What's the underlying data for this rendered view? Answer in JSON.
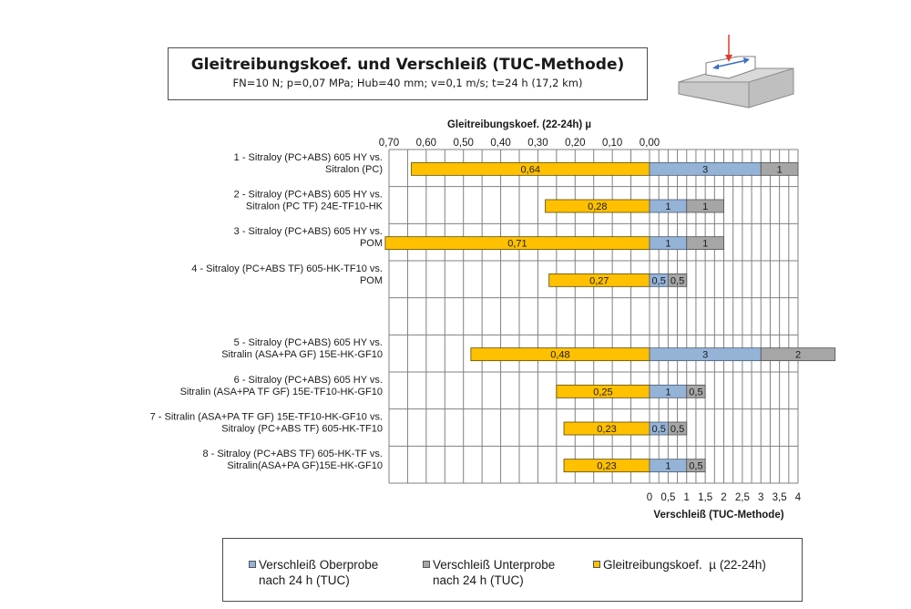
{
  "title": "Gleitreibungskoef. und Verschleiß (TUC-Methode)",
  "subtitle": "FN=10 N; p=0,07 MPa; Hub=40 mm; v=0,1 m/s; t=24 h (17,2 km)",
  "colors": {
    "friction": "#ffc000",
    "wear_upper": "#95b3d7",
    "wear_lower": "#a6a6a6",
    "grid": "#808080"
  },
  "chart_data": {
    "type": "bar",
    "orientation": "horizontal",
    "stacked_right": true,
    "x_top": {
      "label": "Gleitreibungskoef. (22-24h) µ",
      "range": [
        0.7,
        0.0
      ],
      "ticks": [
        "0,70",
        "0,60",
        "0,50",
        "0,40",
        "0,30",
        "0,20",
        "0,10",
        "0,00"
      ]
    },
    "x_bottom": {
      "label": "Verschleiß (TUC-Methode)",
      "range": [
        0,
        4
      ],
      "ticks": [
        "0",
        "0,5",
        "1",
        "1,5",
        "2",
        "2,5",
        "3",
        "3,5",
        "4"
      ]
    },
    "categories": [
      "1 - Sitraloy (PC+ABS) 605 HY  vs.\nSitralon (PC)",
      "2 - Sitraloy (PC+ABS) 605 HY  vs.\nSitralon (PC TF) 24E-TF10-HK",
      "3 - Sitraloy (PC+ABS) 605 HY    vs.\nPOM",
      "4 - Sitraloy (PC+ABS TF) 605-HK-TF10  vs.\nPOM",
      "",
      "5 - Sitraloy (PC+ABS) 605 HY vs.\nSitralin (ASA+PA GF) 15E-HK-GF10",
      "6 - Sitraloy (PC+ABS) 605 HY   vs.\nSitralin (ASA+PA TF GF) 15E-TF10-HK-GF10",
      "7 - Sitralin (ASA+PA TF GF) 15E-TF10-HK-GF10  vs.\nSitraloy (PC+ABS TF) 605-HK-TF10",
      "8 - Sitraloy (PC+ABS TF) 605-HK-TF  vs.\nSitralin(ASA+PA GF)15E-HK-GF10"
    ],
    "series": [
      {
        "name": "Gleitreibungskoef. µ (22-24h)",
        "axis": "top",
        "values": [
          0.64,
          0.28,
          0.71,
          0.27,
          null,
          0.48,
          0.25,
          0.23,
          0.23
        ],
        "labels": [
          "0,64",
          "0,28",
          "0,71",
          "0,27",
          "",
          "0,48",
          "0,25",
          "0,23",
          "0,23"
        ]
      },
      {
        "name": "Verschleiß Oberprobe\nnach 24 h (TUC)",
        "axis": "bottom",
        "values": [
          3,
          1,
          1,
          0.5,
          null,
          3,
          1,
          0.5,
          1
        ],
        "labels": [
          "3",
          "1",
          "1",
          "0,5",
          "",
          "3",
          "1",
          "0,5",
          "1"
        ]
      },
      {
        "name": "Verschleiß Unterprobe\nnach 24 h (TUC)",
        "axis": "bottom",
        "values": [
          1,
          1,
          1,
          0.5,
          null,
          2,
          0.5,
          0.5,
          0.5
        ],
        "labels": [
          "1",
          "1",
          "1",
          "0,5",
          "",
          "2",
          "0,5",
          "0,5",
          "0,5"
        ]
      }
    ],
    "grid": true,
    "legend_position": "bottom"
  },
  "legend": [
    {
      "label": "Verschleiß Oberprobe\nnach 24 h (TUC)",
      "color_key": "wear_upper"
    },
    {
      "label": "Verschleiß Unterprobe\nnach 24 h (TUC)",
      "color_key": "wear_lower"
    },
    {
      "label": "Gleitreibungskoef.  µ (22-24h)",
      "color_key": "friction"
    }
  ]
}
